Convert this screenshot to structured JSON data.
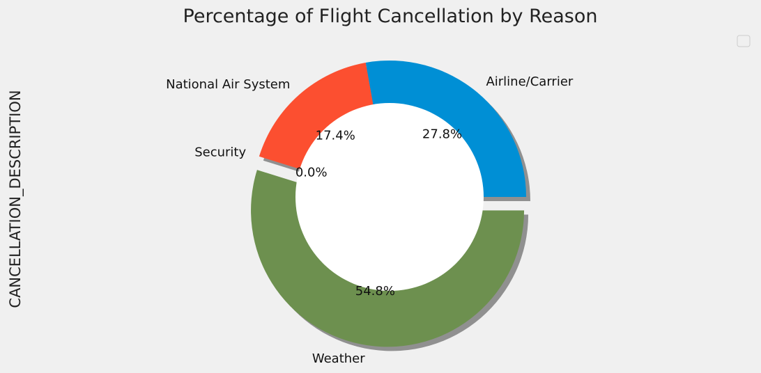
{
  "chart_data": {
    "type": "pie",
    "title": "Percentage of Flight Cancellation by Reason",
    "ylabel": "CANCELLATION_DESCRIPTION",
    "donut": true,
    "shadow": true,
    "legend": {
      "placement": "top-right",
      "entries": []
    },
    "slices": [
      {
        "label": "Airline/Carrier",
        "value": 27.8,
        "pct_label": "27.8%",
        "color": "#008fd5"
      },
      {
        "label": "National Air System",
        "value": 17.4,
        "pct_label": "17.4%",
        "color": "#fc4f30"
      },
      {
        "label": "Security",
        "value": 0.0,
        "pct_label": "0.0%",
        "color": "#e5ae38"
      },
      {
        "label": "Weather",
        "value": 54.8,
        "pct_label": "54.8%",
        "color": "#6d904f"
      }
    ]
  }
}
